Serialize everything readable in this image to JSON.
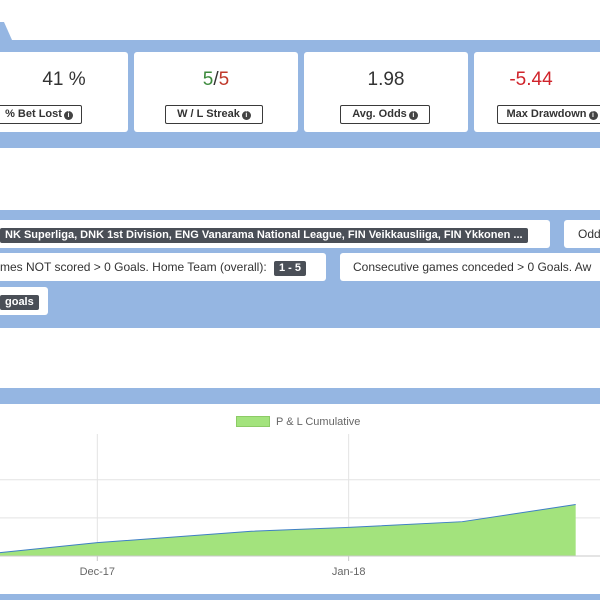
{
  "colors": {
    "band": "#95b6e2",
    "win": "#3c8a3c",
    "loss": "#d0242b",
    "area_fill": "#a3e37d",
    "area_line": "#3f7fc4",
    "pill_dark": "#4a4f57"
  },
  "stats": [
    {
      "value": "41 %",
      "label": "% Bet Lost",
      "icon": "info-icon"
    },
    {
      "win": "5",
      "sep": "/",
      "loss": "5",
      "label": "W / L Streak",
      "icon": "info-icon"
    },
    {
      "value": "1.98",
      "label": "Avg. Odds",
      "icon": "info-icon"
    },
    {
      "value": "-5.44",
      "label": "Max Drawdown",
      "icon": "info-icon"
    }
  ],
  "filters": {
    "leagues": "NK Superliga, DNK 1st Division, ENG Vanarama National League, FIN Veikkausliiga, FIN Ykkonen ...",
    "odds_label": "Odd",
    "home_rule_text": "mes NOT scored > 0 Goals. Home Team (overall):",
    "home_rule_value": "1 - 5",
    "away_rule_text": "Consecutive games conceded > 0 Goals. Aw",
    "market": "goals"
  },
  "chart_data": {
    "type": "area",
    "legend": [
      "P & L Cumulative"
    ],
    "x_ticks": [
      "Dec-17",
      "Jan-18"
    ],
    "series": [
      {
        "name": "P & L Cumulative",
        "points": [
          {
            "x": "2017-11-15",
            "y": 0.0
          },
          {
            "x": "2017-12-01",
            "y": 0.7
          },
          {
            "x": "2017-12-20",
            "y": 1.3
          },
          {
            "x": "2018-01-01",
            "y": 1.5
          },
          {
            "x": "2018-01-15",
            "y": 1.8
          },
          {
            "x": "2018-01-29",
            "y": 2.7
          }
        ]
      }
    ],
    "grid": true
  }
}
